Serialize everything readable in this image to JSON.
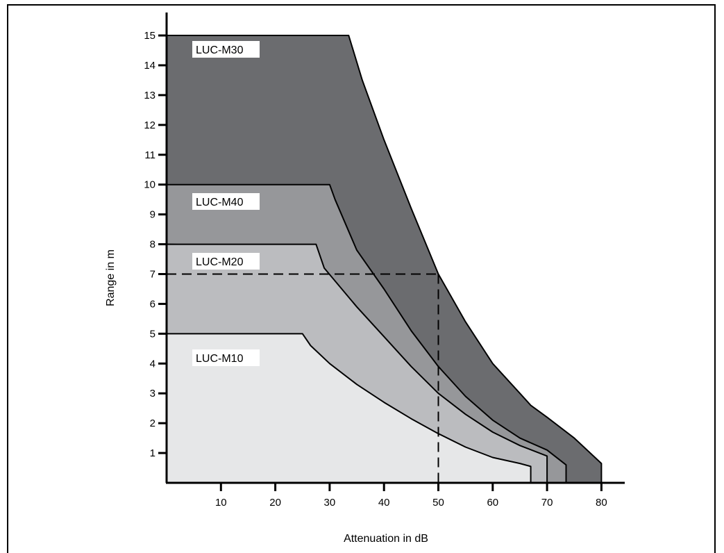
{
  "chart_data": {
    "type": "area",
    "xlabel": "Attenuation in dB",
    "ylabel": "Range in m",
    "xlim": [
      0,
      84
    ],
    "ylim": [
      0,
      15
    ],
    "xticks": [
      10,
      20,
      30,
      40,
      50,
      60,
      70,
      80
    ],
    "yticks": [
      1,
      2,
      3,
      4,
      5,
      6,
      7,
      8,
      9,
      10,
      11,
      12,
      13,
      14,
      15
    ],
    "grid": false,
    "legend": "none",
    "series": [
      {
        "name": "LUC-M30",
        "color": "#6b6c6f",
        "x": [
          0,
          33.5,
          36,
          40,
          45,
          50,
          55,
          60,
          65,
          67,
          70,
          75,
          80,
          80
        ],
        "y": [
          15,
          15,
          13.5,
          11.5,
          9.2,
          7,
          5.4,
          4,
          3,
          2.6,
          2.2,
          1.5,
          0.65,
          0
        ]
      },
      {
        "name": "LUC-M40",
        "color": "#96979a",
        "x": [
          0,
          30,
          31,
          35,
          40,
          45,
          50,
          55,
          60,
          65,
          70,
          73.5,
          73.5
        ],
        "y": [
          10,
          10,
          9.5,
          7.8,
          6.5,
          5.1,
          3.9,
          2.9,
          2.1,
          1.5,
          1.1,
          0.6,
          0
        ]
      },
      {
        "name": "LUC-M20",
        "color": "#bbbcbf",
        "x": [
          0,
          27.5,
          29,
          35,
          40,
          45,
          50,
          55,
          60,
          65,
          70,
          70
        ],
        "y": [
          8,
          8,
          7.2,
          5.9,
          4.9,
          3.9,
          3,
          2.3,
          1.7,
          1.25,
          0.9,
          0
        ]
      },
      {
        "name": "LUC-M10",
        "color": "#e6e7e8",
        "x": [
          0,
          25,
          26.5,
          30,
          35,
          40,
          45,
          50,
          55,
          60,
          65,
          67,
          67
        ],
        "y": [
          5,
          5,
          4.6,
          4,
          3.3,
          2.7,
          2.15,
          1.65,
          1.2,
          0.85,
          0.65,
          0.55,
          0
        ]
      }
    ],
    "reference_lines": [
      {
        "x": [
          0,
          50
        ],
        "y": [
          7,
          7
        ]
      },
      {
        "x": [
          50,
          50
        ],
        "y": [
          7,
          0
        ]
      }
    ]
  }
}
